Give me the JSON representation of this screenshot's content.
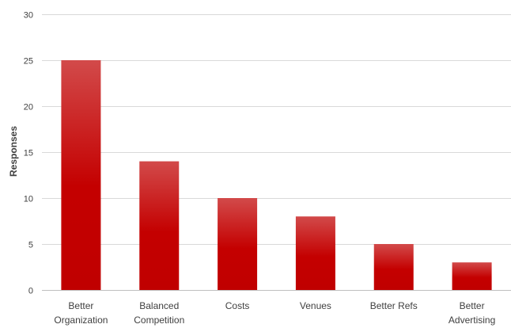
{
  "chart_data": {
    "type": "bar",
    "title": "",
    "xlabel": "",
    "ylabel": "Responses",
    "categories": [
      [
        "Better",
        "Organization"
      ],
      [
        "Balanced",
        "Competition"
      ],
      [
        "Costs"
      ],
      [
        "Venues"
      ],
      [
        "Better Refs"
      ],
      [
        "Better",
        "Advertising"
      ]
    ],
    "values": [
      25,
      14,
      10,
      8,
      5,
      3
    ],
    "ylim": [
      0,
      30
    ],
    "yticks": [
      0,
      5,
      10,
      15,
      20,
      25,
      30
    ],
    "grid": true,
    "legend": "none",
    "bar_color_top": "#d24a4a",
    "bar_color_bottom": "#c00000",
    "grid_color": "#d9d9d9",
    "text_color": "#404040"
  }
}
